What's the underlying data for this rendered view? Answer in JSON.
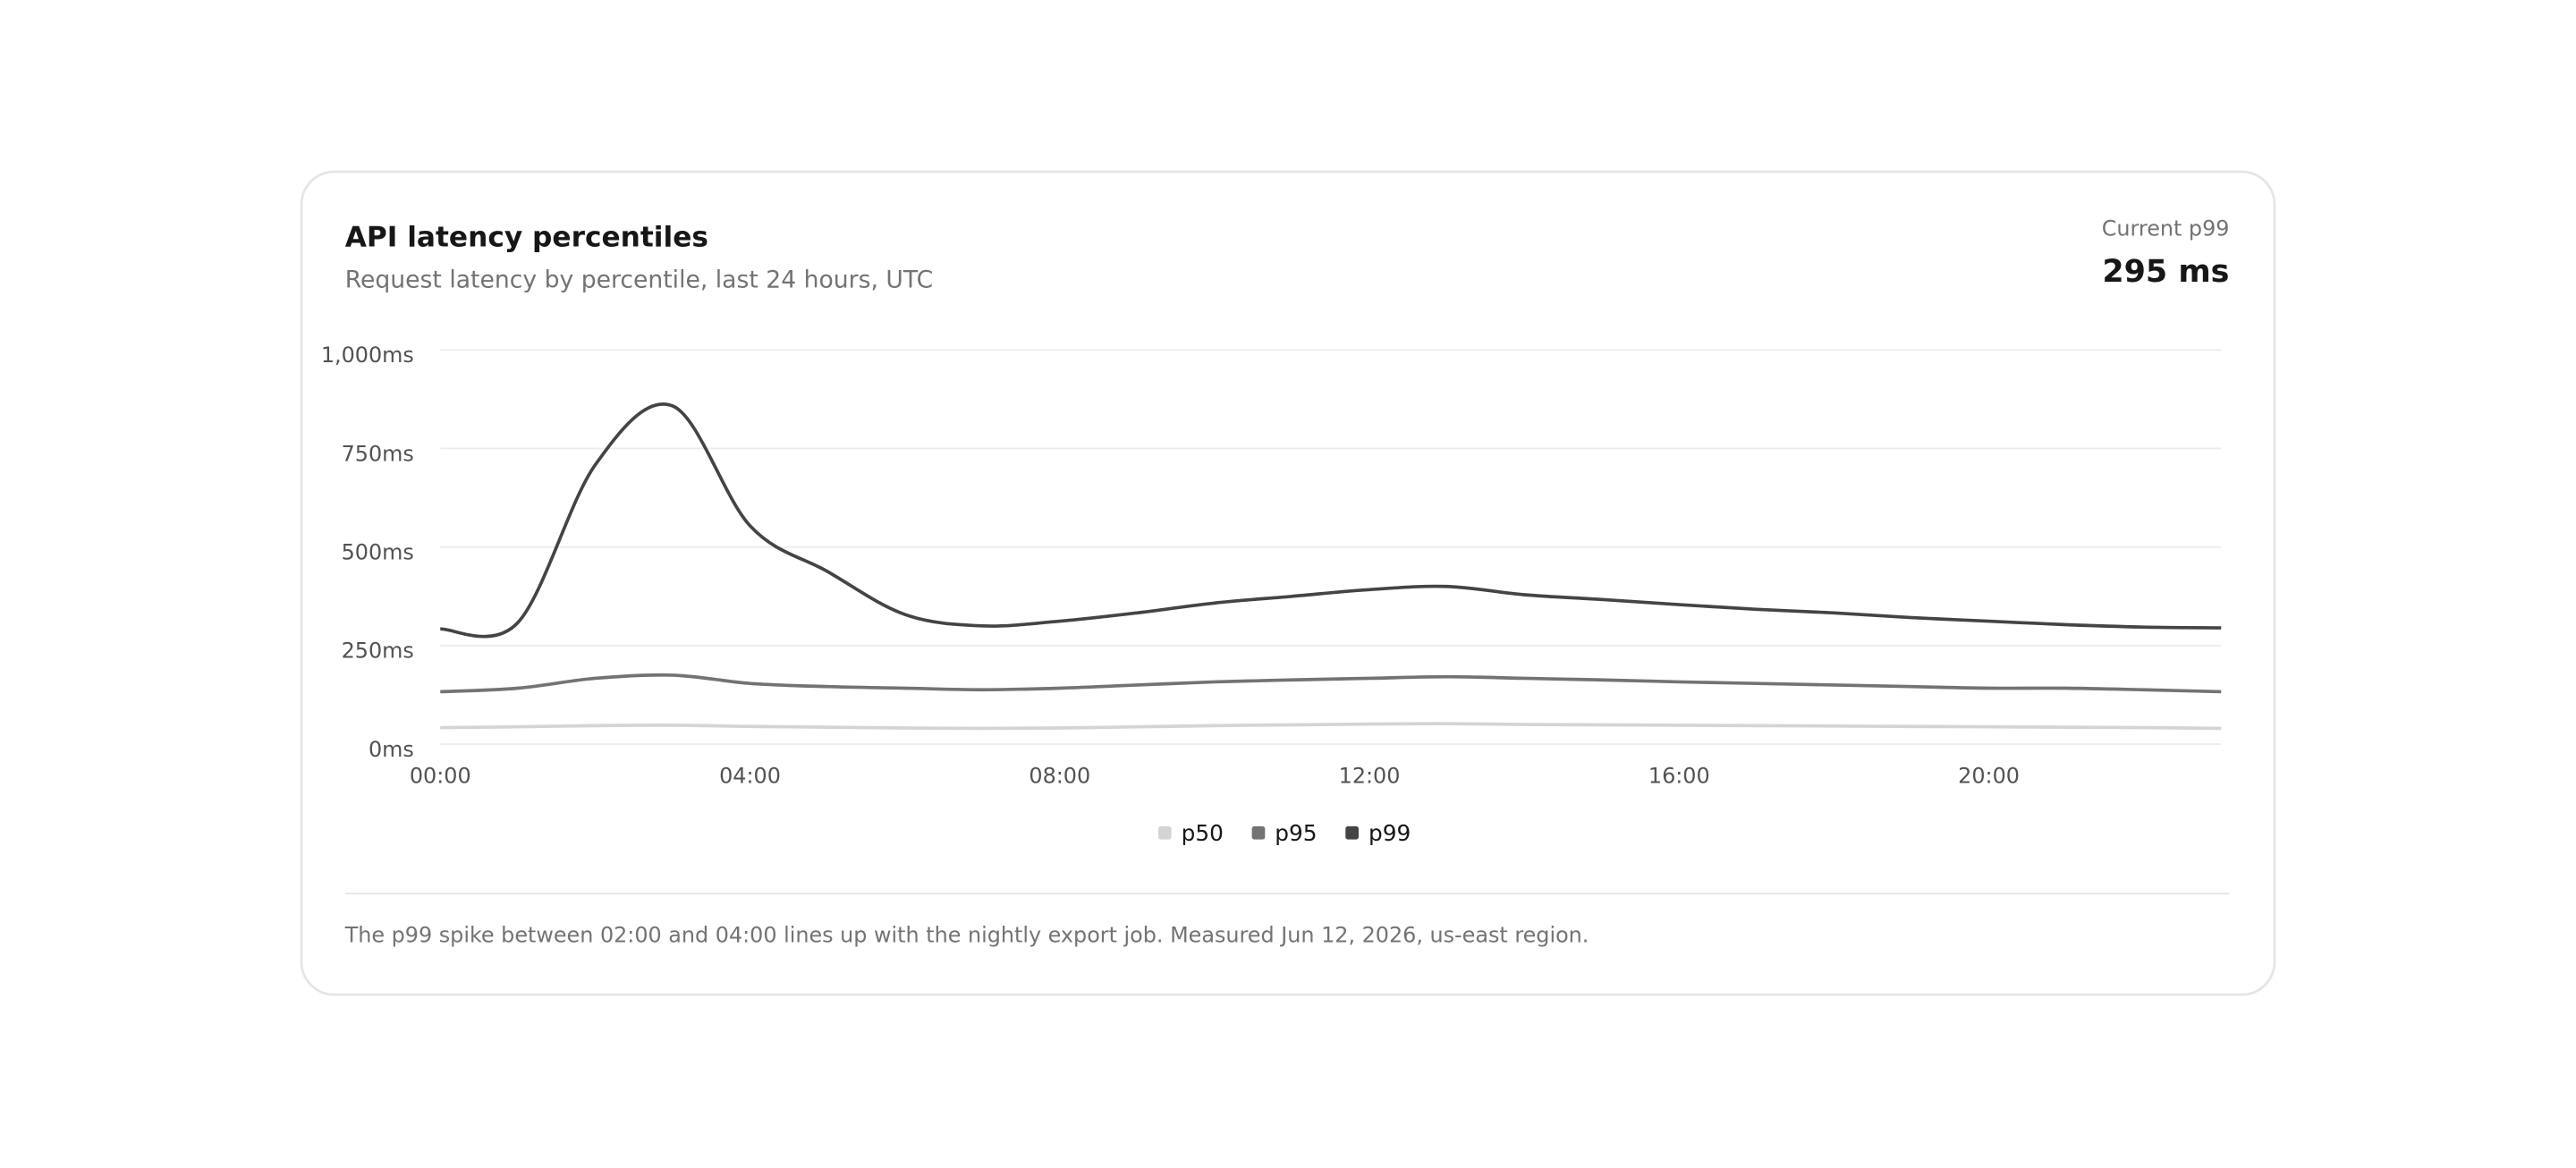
{
  "header": {
    "title": "API latency percentiles",
    "subtitle": "Request latency by percentile, last 24 hours, UTC",
    "current_label": "Current p99",
    "current_value": "295 ms"
  },
  "chart_data": {
    "type": "line",
    "x": [
      "00:00",
      null,
      null,
      null,
      "04:00",
      null,
      null,
      null,
      "08:00",
      null,
      null,
      null,
      "12:00",
      null,
      null,
      null,
      "16:00",
      null,
      null,
      null,
      "20:00",
      null,
      null,
      null
    ],
    "series": [
      {
        "name": "p50",
        "color": "#d4d4d4",
        "values": [
          42,
          44,
          47,
          48,
          45,
          43,
          41,
          40,
          41,
          44,
          47,
          49,
          51,
          52,
          50,
          49,
          48,
          47,
          46,
          45,
          44,
          43,
          42,
          40
        ]
      },
      {
        "name": "p95",
        "color": "#737373",
        "values": [
          133,
          142,
          167,
          175,
          154,
          146,
          142,
          138,
          142,
          150,
          158,
          163,
          167,
          171,
          167,
          163,
          158,
          154,
          150,
          146,
          142,
          142,
          138,
          133
        ]
      },
      {
        "name": "p99",
        "color": "#444444",
        "values": [
          292,
          308,
          708,
          858,
          554,
          438,
          329,
          300,
          312,
          333,
          358,
          375,
          392,
          400,
          379,
          367,
          354,
          342,
          333,
          321,
          312,
          303,
          297,
          295
        ]
      }
    ],
    "ylim": [
      0,
      1000
    ],
    "yticks": [
      {
        "value": 0,
        "label": "0ms"
      },
      {
        "value": 250,
        "label": "250ms"
      },
      {
        "value": 500,
        "label": "500ms"
      },
      {
        "value": 750,
        "label": "750ms"
      },
      {
        "value": 1000,
        "label": "1,000ms"
      }
    ],
    "grid": true,
    "legend": "bottom"
  },
  "footer": {
    "note": "The p99 spike between 02:00 and 04:00 lines up with the nightly export job. Measured Jun 12, 2026, us-east region."
  }
}
